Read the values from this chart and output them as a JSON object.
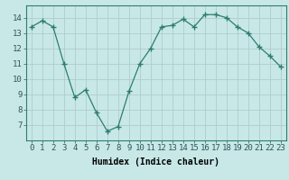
{
  "x": [
    0,
    1,
    2,
    3,
    4,
    5,
    6,
    7,
    8,
    9,
    10,
    11,
    12,
    13,
    14,
    15,
    16,
    17,
    18,
    19,
    20,
    21,
    22,
    23
  ],
  "y": [
    13.4,
    13.8,
    13.4,
    11.0,
    8.8,
    9.3,
    7.8,
    6.6,
    6.9,
    9.2,
    11.0,
    12.0,
    13.4,
    13.5,
    13.9,
    13.4,
    14.2,
    14.2,
    14.0,
    13.4,
    13.0,
    12.1,
    11.5,
    10.8
  ],
  "line_color": "#2e7d6e",
  "marker": "+",
  "bg_color": "#c8e8e8",
  "grid_major_color": "#b0cccc",
  "grid_minor_color": "#c0d8d8",
  "xlabel": "Humidex (Indice chaleur)",
  "ylim": [
    6.0,
    14.8
  ],
  "yticks": [
    7,
    8,
    9,
    10,
    11,
    12,
    13,
    14
  ],
  "xticks": [
    0,
    1,
    2,
    3,
    4,
    5,
    6,
    7,
    8,
    9,
    10,
    11,
    12,
    13,
    14,
    15,
    16,
    17,
    18,
    19,
    20,
    21,
    22,
    23
  ],
  "label_fontsize": 7,
  "tick_fontsize": 6.5
}
